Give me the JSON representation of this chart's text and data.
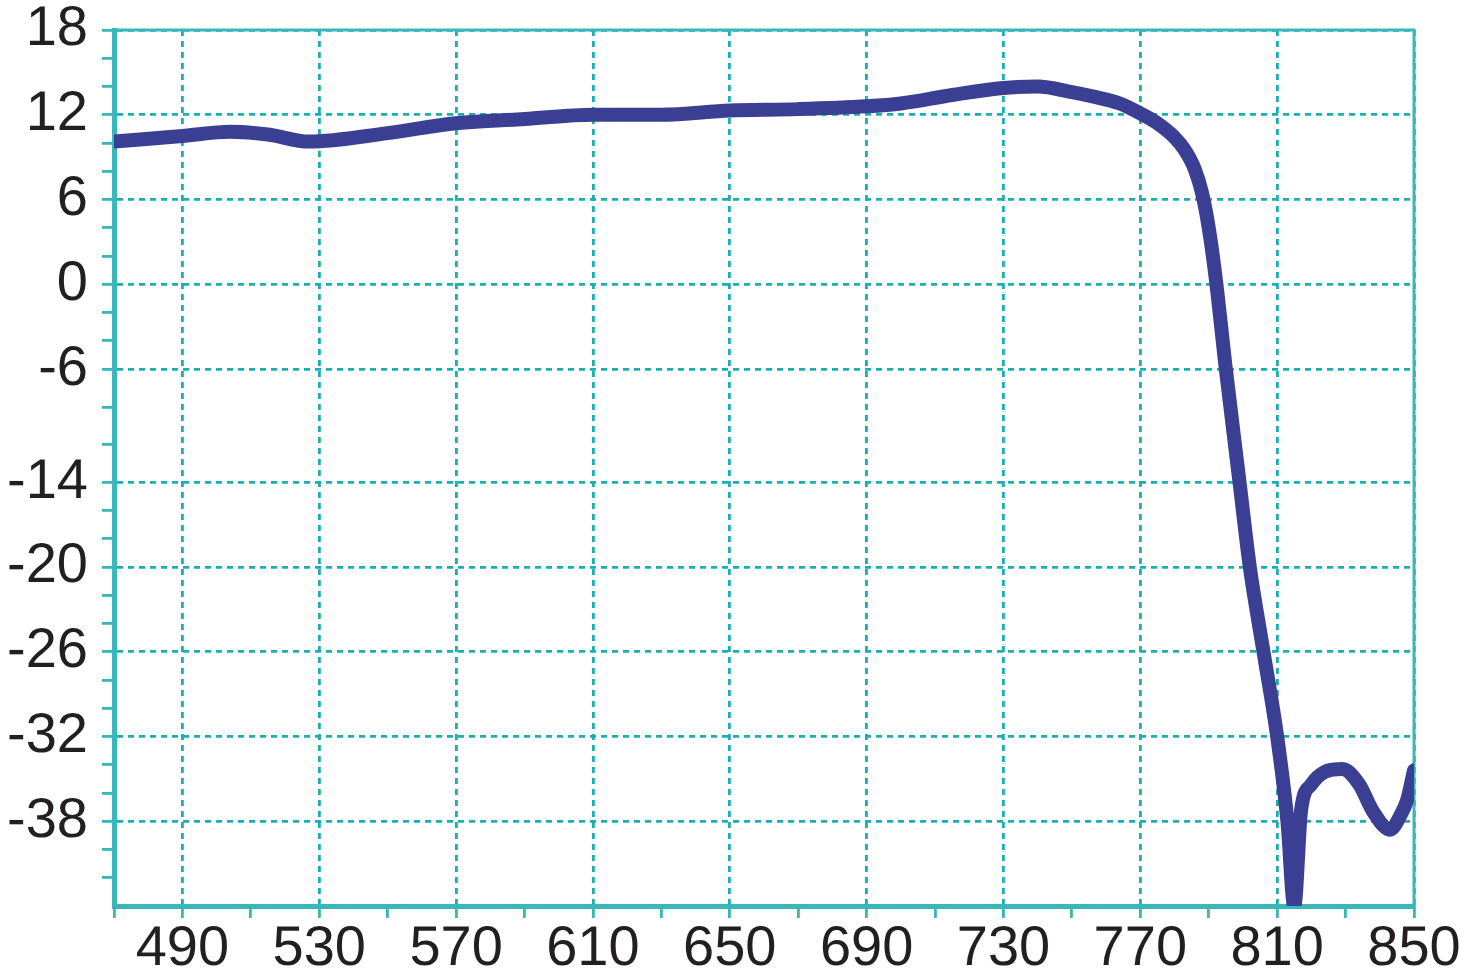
{
  "chart_data": {
    "type": "line",
    "x": [
      470,
      490,
      504,
      515,
      527,
      550,
      570,
      590,
      610,
      630,
      650,
      670,
      690,
      700,
      715,
      730,
      740,
      750,
      756,
      764,
      770,
      775,
      780,
      783,
      786,
      788,
      790,
      792,
      795,
      799,
      802,
      806,
      810,
      813,
      815,
      817,
      820,
      824,
      829,
      834,
      838,
      843,
      846,
      848,
      850
    ],
    "series": [
      {
        "color": "#3b3f94",
        "values": [
          10.1,
          10.5,
          10.8,
          10.6,
          10.1,
          10.7,
          11.4,
          11.7,
          12.0,
          12.0,
          12.3,
          12.4,
          12.6,
          12.8,
          13.4,
          13.9,
          14.0,
          13.6,
          13.3,
          12.8,
          12.1,
          11.4,
          10.4,
          9.5,
          8.1,
          6.5,
          4.0,
          0.5,
          -6,
          -14,
          -20,
          -26,
          -32,
          -38,
          -44,
          -37.2,
          -35.4,
          -34.5,
          -34.3,
          -35.4,
          -37.3,
          -38.6,
          -37.6,
          -36.5,
          -34.4
        ]
      }
    ],
    "xlim": [
      470,
      850
    ],
    "xticks": [
      {
        "value": 470,
        "label": null
      },
      490,
      {
        "value": 510,
        "label": null
      },
      530,
      {
        "value": 550,
        "label": null
      },
      570,
      {
        "value": 590,
        "label": null
      },
      610,
      {
        "value": 630,
        "label": null
      },
      650,
      {
        "value": 670,
        "label": null
      },
      690,
      {
        "value": 710,
        "label": null
      },
      730,
      {
        "value": 750,
        "label": null
      },
      770,
      {
        "value": 790,
        "label": null
      },
      810,
      {
        "value": 830,
        "label": null
      },
      850
    ],
    "ylim": [
      -44,
      18
    ],
    "yticks": [
      {
        "value": -42,
        "label": null
      },
      {
        "value": -40,
        "label": null
      },
      -38,
      {
        "value": -36,
        "label": null
      },
      {
        "value": -34,
        "label": null
      },
      -32,
      {
        "value": -30,
        "label": null
      },
      {
        "value": -28,
        "label": null
      },
      -26,
      {
        "value": -24,
        "label": null
      },
      {
        "value": -22,
        "label": null
      },
      -20,
      {
        "value": -18,
        "label": null
      },
      {
        "value": -16,
        "label": null
      },
      -14,
      {
        "value": -11.3,
        "label": null
      },
      {
        "value": -8.7,
        "label": null
      },
      -6,
      {
        "value": -4,
        "label": null
      },
      {
        "value": -2,
        "label": null
      },
      0,
      {
        "value": 2,
        "label": null
      },
      {
        "value": 4,
        "label": null
      },
      6,
      {
        "value": 8,
        "label": null
      },
      {
        "value": 10,
        "label": null
      },
      12,
      {
        "value": 14,
        "label": null
      },
      {
        "value": 16,
        "label": null
      },
      18
    ],
    "grid": true,
    "legend": false,
    "marker": "none",
    "line_style": "solid"
  }
}
